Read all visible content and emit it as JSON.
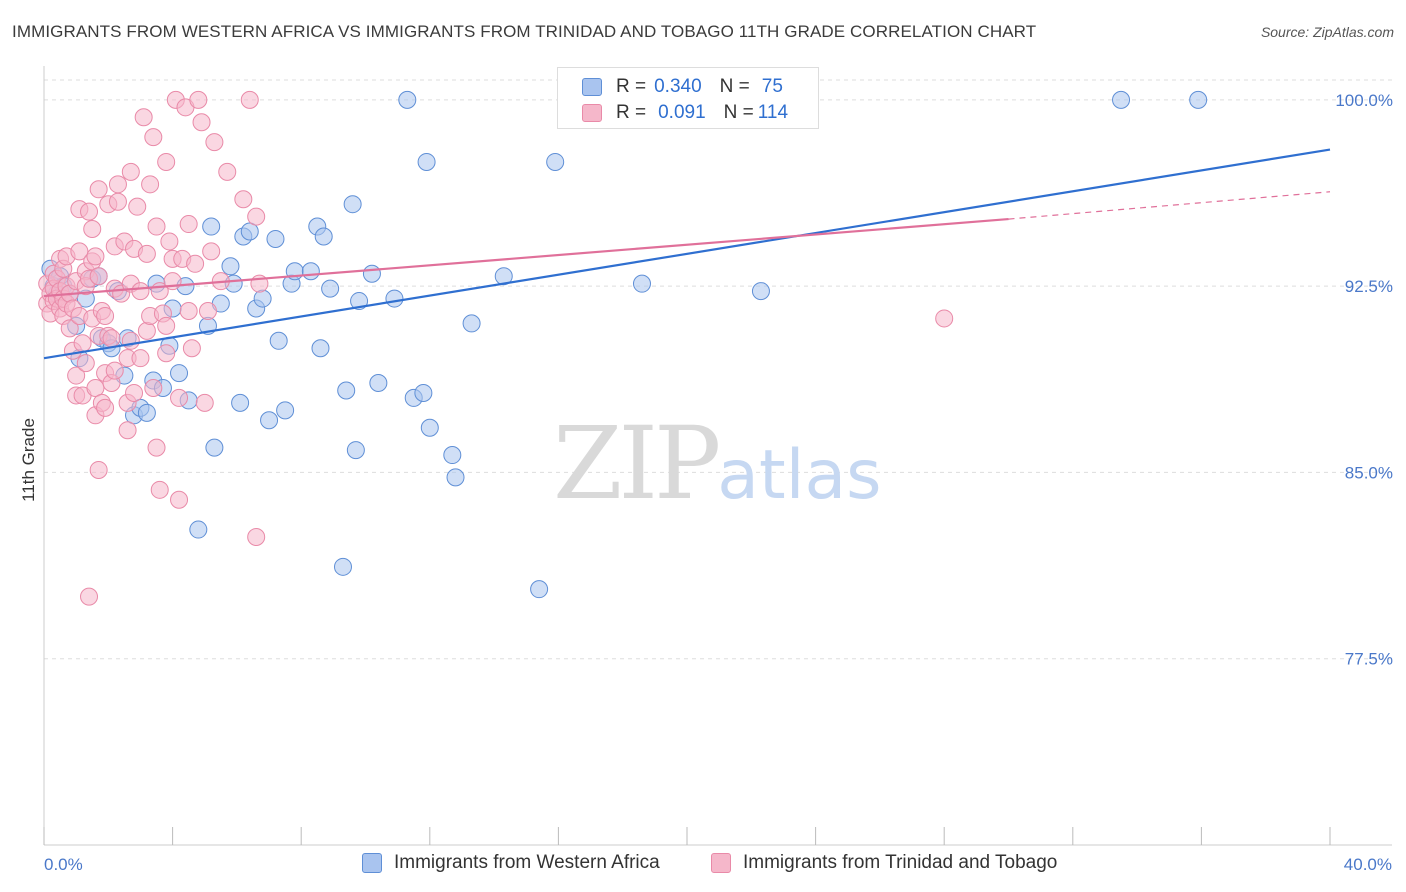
{
  "title": "IMMIGRANTS FROM WESTERN AFRICA VS IMMIGRANTS FROM TRINIDAD AND TOBAGO 11TH GRADE CORRELATION CHART",
  "source": "Source: ZipAtlas.com",
  "watermark": {
    "zip": "ZIP",
    "atlas": "atlas"
  },
  "legend": {
    "rows": [
      {
        "r_label": "R =",
        "r_value": "0.340",
        "n_label": "N =",
        "n_value": "75"
      },
      {
        "r_label": "R =",
        "r_value": "0.091",
        "n_label": "N =",
        "n_value": "114"
      }
    ]
  },
  "colors": {
    "blue_fill": "#a9c4ef",
    "blue_stroke": "#5f8fd6",
    "blue_line": "#2f6fd0",
    "pink_fill": "#f5b7ca",
    "pink_stroke": "#e98aa8",
    "pink_line": "#e0709a",
    "tick_text": "#4a78c9",
    "grid": "#dddddd"
  },
  "chart_data": {
    "type": "scatter",
    "title": "IMMIGRANTS FROM WESTERN AFRICA VS IMMIGRANTS FROM TRINIDAD AND TOBAGO 11TH GRADE CORRELATION CHART",
    "xlabel": "",
    "ylabel": "11th Grade",
    "xlim": [
      0,
      40
    ],
    "ylim": [
      70,
      100.8
    ],
    "x_tick_labels": [
      "0.0%",
      "40.0%"
    ],
    "y_ticks": [
      77.5,
      85.0,
      92.5,
      100.0
    ],
    "y_tick_labels": [
      "77.5%",
      "85.0%",
      "92.5%",
      "100.0%"
    ],
    "grid": true,
    "legend_position": "bottom",
    "series": [
      {
        "name": "Immigrants from Western Africa",
        "color": "blue",
        "r": 0.34,
        "n": 75,
        "trend": {
          "x": [
            0,
            40
          ],
          "y": [
            89.6,
            98.0
          ]
        },
        "points": [
          [
            0.2,
            93.2
          ],
          [
            0.3,
            92.5
          ],
          [
            0.4,
            92.2
          ],
          [
            0.5,
            92.9
          ],
          [
            0.6,
            92.5
          ],
          [
            0.8,
            92.2
          ],
          [
            1.0,
            90.9
          ],
          [
            1.1,
            89.6
          ],
          [
            1.3,
            92.0
          ],
          [
            1.5,
            92.8
          ],
          [
            1.7,
            92.9
          ],
          [
            1.8,
            90.4
          ],
          [
            2.0,
            90.2
          ],
          [
            2.1,
            90.0
          ],
          [
            2.3,
            92.3
          ],
          [
            2.5,
            88.9
          ],
          [
            2.6,
            90.4
          ],
          [
            2.8,
            87.3
          ],
          [
            3.0,
            87.6
          ],
          [
            3.2,
            87.4
          ],
          [
            3.4,
            88.7
          ],
          [
            3.5,
            92.6
          ],
          [
            3.7,
            88.4
          ],
          [
            3.9,
            90.1
          ],
          [
            4.0,
            91.6
          ],
          [
            4.2,
            89.0
          ],
          [
            4.4,
            92.5
          ],
          [
            4.5,
            87.9
          ],
          [
            4.8,
            82.7
          ],
          [
            5.1,
            90.9
          ],
          [
            5.2,
            94.9
          ],
          [
            5.3,
            86.0
          ],
          [
            5.5,
            91.8
          ],
          [
            5.8,
            93.3
          ],
          [
            5.9,
            92.6
          ],
          [
            6.1,
            87.8
          ],
          [
            6.2,
            94.5
          ],
          [
            6.4,
            94.7
          ],
          [
            6.6,
            91.6
          ],
          [
            6.8,
            92.0
          ],
          [
            7.0,
            87.1
          ],
          [
            7.2,
            94.4
          ],
          [
            7.3,
            90.3
          ],
          [
            7.5,
            87.5
          ],
          [
            7.7,
            92.6
          ],
          [
            7.8,
            93.1
          ],
          [
            8.3,
            93.1
          ],
          [
            8.5,
            94.9
          ],
          [
            8.6,
            90.0
          ],
          [
            8.7,
            94.5
          ],
          [
            8.9,
            92.4
          ],
          [
            9.3,
            81.2
          ],
          [
            9.4,
            88.3
          ],
          [
            9.6,
            95.8
          ],
          [
            9.7,
            85.9
          ],
          [
            9.8,
            91.9
          ],
          [
            10.2,
            93.0
          ],
          [
            10.4,
            88.6
          ],
          [
            10.9,
            92.0
          ],
          [
            11.3,
            100.0
          ],
          [
            11.5,
            88.0
          ],
          [
            11.8,
            88.2
          ],
          [
            11.9,
            97.5
          ],
          [
            12.0,
            86.8
          ],
          [
            12.7,
            85.7
          ],
          [
            12.8,
            84.8
          ],
          [
            13.3,
            91.0
          ],
          [
            14.3,
            92.9
          ],
          [
            15.4,
            80.3
          ],
          [
            15.9,
            97.5
          ],
          [
            18.6,
            92.6
          ],
          [
            22.3,
            92.3
          ],
          [
            33.5,
            100.0
          ],
          [
            35.9,
            100.0
          ],
          [
            16.6,
            100.0
          ]
        ]
      },
      {
        "name": "Immigrants from Trinidad and Tobago",
        "color": "pink",
        "r": 0.091,
        "n": 114,
        "trend": {
          "x": [
            0,
            30
          ],
          "y": [
            92.1,
            95.2
          ]
        },
        "trend_dashed": {
          "x": [
            30,
            40
          ],
          "y": [
            95.2,
            96.3
          ]
        },
        "points": [
          [
            0.1,
            92.6
          ],
          [
            0.1,
            91.8
          ],
          [
            0.2,
            92.2
          ],
          [
            0.2,
            91.4
          ],
          [
            0.3,
            93.0
          ],
          [
            0.3,
            92.4
          ],
          [
            0.3,
            91.9
          ],
          [
            0.4,
            92.8
          ],
          [
            0.4,
            92.0
          ],
          [
            0.5,
            93.6
          ],
          [
            0.5,
            92.3
          ],
          [
            0.5,
            91.6
          ],
          [
            0.6,
            93.2
          ],
          [
            0.6,
            92.0
          ],
          [
            0.6,
            91.3
          ],
          [
            0.7,
            93.7
          ],
          [
            0.7,
            92.5
          ],
          [
            0.7,
            91.8
          ],
          [
            0.8,
            92.2
          ],
          [
            0.8,
            90.8
          ],
          [
            0.9,
            91.6
          ],
          [
            0.9,
            89.9
          ],
          [
            1.0,
            92.7
          ],
          [
            1.0,
            88.9
          ],
          [
            1.0,
            88.1
          ],
          [
            1.1,
            95.6
          ],
          [
            1.1,
            93.9
          ],
          [
            1.1,
            91.3
          ],
          [
            1.2,
            90.2
          ],
          [
            1.2,
            88.1
          ],
          [
            1.3,
            93.1
          ],
          [
            1.3,
            92.5
          ],
          [
            1.3,
            89.4
          ],
          [
            1.4,
            95.5
          ],
          [
            1.4,
            92.8
          ],
          [
            1.5,
            94.8
          ],
          [
            1.5,
            93.5
          ],
          [
            1.5,
            91.2
          ],
          [
            1.6,
            93.7
          ],
          [
            1.6,
            88.4
          ],
          [
            1.6,
            87.3
          ],
          [
            1.7,
            96.4
          ],
          [
            1.7,
            92.9
          ],
          [
            1.7,
            90.5
          ],
          [
            1.7,
            85.1
          ],
          [
            1.8,
            91.5
          ],
          [
            1.8,
            87.8
          ],
          [
            1.9,
            89.0
          ],
          [
            1.9,
            87.6
          ],
          [
            2.0,
            95.8
          ],
          [
            2.0,
            90.5
          ],
          [
            2.1,
            88.6
          ],
          [
            2.2,
            94.1
          ],
          [
            2.2,
            92.4
          ],
          [
            2.2,
            89.1
          ],
          [
            2.3,
            96.6
          ],
          [
            2.3,
            95.9
          ],
          [
            2.4,
            92.2
          ],
          [
            2.5,
            94.3
          ],
          [
            2.6,
            89.6
          ],
          [
            2.6,
            87.8
          ],
          [
            2.6,
            86.7
          ],
          [
            2.7,
            97.1
          ],
          [
            2.7,
            92.6
          ],
          [
            2.7,
            90.3
          ],
          [
            2.8,
            94.0
          ],
          [
            2.8,
            88.2
          ],
          [
            2.9,
            95.7
          ],
          [
            3.0,
            92.3
          ],
          [
            3.0,
            89.6
          ],
          [
            3.1,
            99.3
          ],
          [
            3.2,
            93.8
          ],
          [
            3.2,
            90.7
          ],
          [
            3.3,
            96.6
          ],
          [
            3.3,
            91.3
          ],
          [
            3.4,
            98.5
          ],
          [
            3.4,
            88.4
          ],
          [
            3.5,
            94.9
          ],
          [
            3.6,
            92.3
          ],
          [
            3.7,
            91.4
          ],
          [
            3.8,
            97.5
          ],
          [
            3.8,
            90.9
          ],
          [
            3.8,
            89.8
          ],
          [
            3.9,
            94.3
          ],
          [
            4.0,
            93.6
          ],
          [
            4.0,
            92.7
          ],
          [
            4.1,
            100.0
          ],
          [
            4.2,
            88.0
          ],
          [
            4.3,
            93.6
          ],
          [
            4.4,
            99.7
          ],
          [
            4.5,
            95.0
          ],
          [
            4.5,
            91.5
          ],
          [
            4.6,
            90.0
          ],
          [
            4.7,
            93.4
          ],
          [
            4.8,
            100.0
          ],
          [
            4.9,
            99.1
          ],
          [
            5.0,
            87.8
          ],
          [
            5.1,
            91.5
          ],
          [
            5.2,
            93.9
          ],
          [
            5.3,
            98.3
          ],
          [
            5.5,
            92.7
          ],
          [
            5.7,
            97.1
          ],
          [
            6.2,
            96.0
          ],
          [
            6.4,
            100.0
          ],
          [
            6.6,
            95.3
          ],
          [
            6.7,
            92.6
          ],
          [
            6.6,
            82.4
          ],
          [
            3.5,
            86.0
          ],
          [
            3.6,
            84.3
          ],
          [
            4.2,
            83.9
          ],
          [
            1.4,
            80.0
          ],
          [
            28.0,
            91.2
          ],
          [
            2.1,
            90.4
          ],
          [
            1.9,
            91.3
          ]
        ]
      }
    ]
  },
  "bottom_legend": {
    "items": [
      {
        "label": "Immigrants from Western Africa"
      },
      {
        "label": "Immigrants from Trinidad and Tobago"
      }
    ]
  }
}
